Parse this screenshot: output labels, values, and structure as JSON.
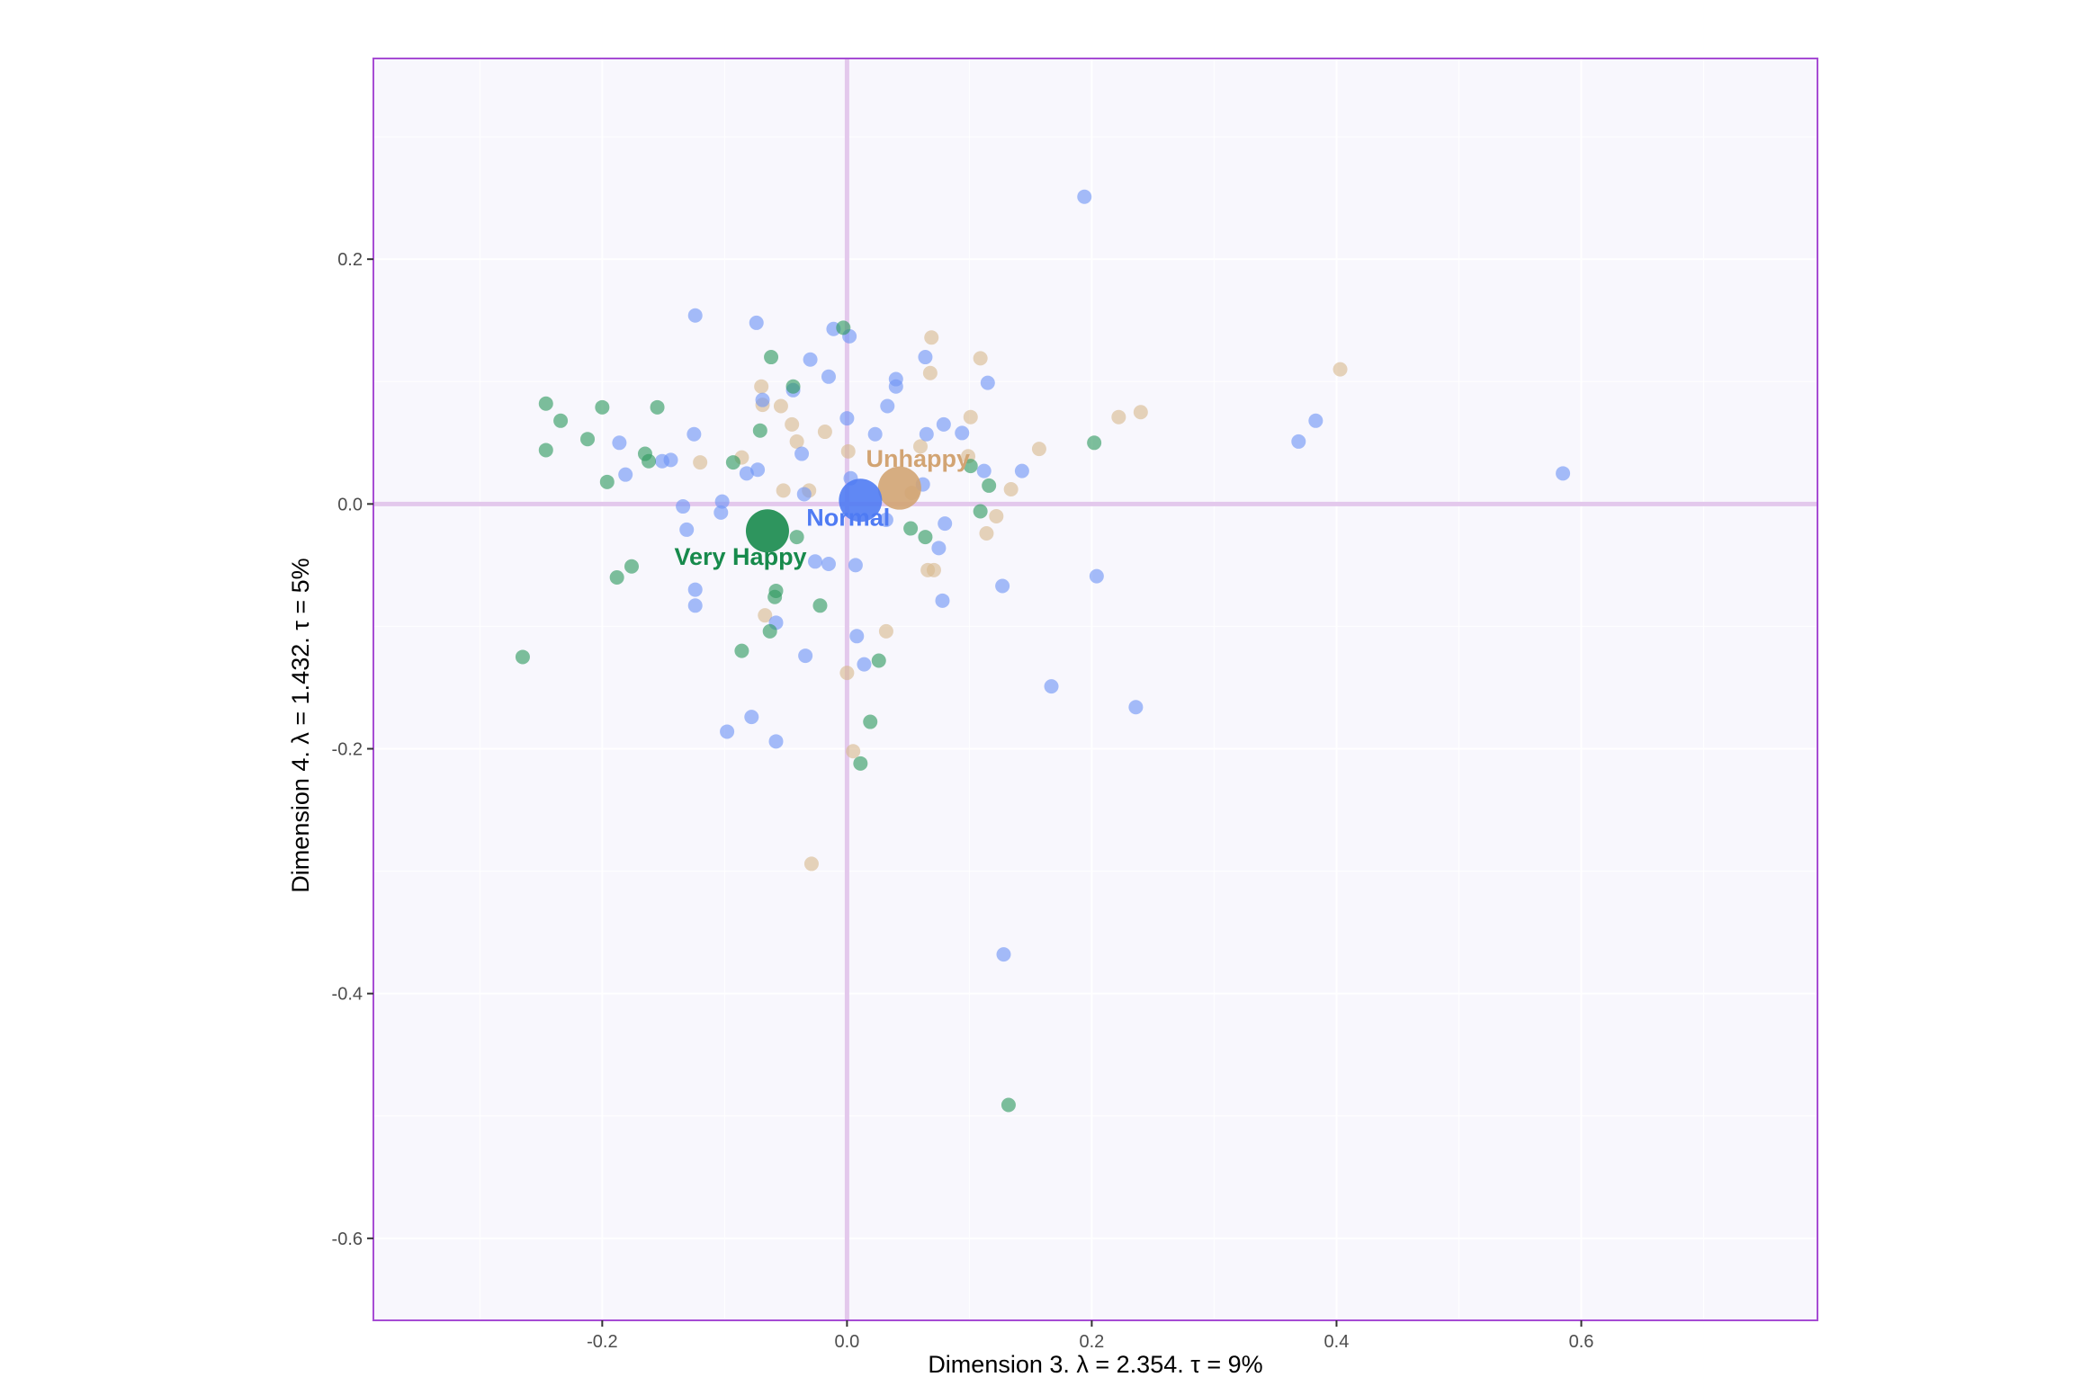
{
  "chart_data": {
    "type": "scatter",
    "title": "",
    "xlabel": "Dimension 3.   λ = 2.354.  τ = 9%",
    "ylabel": "Dimension 4.   λ = 1.432.  τ = 5%",
    "xlim": [
      -0.387,
      0.793
    ],
    "ylim": [
      -0.667,
      0.364
    ],
    "x_ticks": [
      -0.2,
      0.0,
      0.2,
      0.4,
      0.6
    ],
    "x_tick_labels": [
      "-0.2",
      "0.0",
      "0.2",
      "0.4",
      "0.6"
    ],
    "y_ticks": [
      -0.6,
      -0.4,
      -0.2,
      0.0,
      0.2
    ],
    "y_tick_labels": [
      "-0.6",
      "-0.4",
      "-0.2",
      "0.0",
      "0.2"
    ],
    "grid": true,
    "reference_lines": {
      "x": 0.0,
      "y": 0.0,
      "color": "#e3c8ec"
    },
    "colors": {
      "panel_background": "#f8f7fd",
      "panel_border": "#a64cd4",
      "grid": "#ffffff"
    },
    "series": [
      {
        "color": "#d9b990",
        "points": [
          [
            0.069,
            0.136
          ],
          [
            0.068,
            0.107
          ],
          [
            0.109,
            0.119
          ],
          [
            0.403,
            0.11
          ],
          [
            0.24,
            0.075
          ],
          [
            0.222,
            0.071
          ],
          [
            0.157,
            0.045
          ],
          [
            0.101,
            0.071
          ],
          [
            -0.07,
            0.096
          ],
          [
            -0.069,
            0.081
          ],
          [
            -0.054,
            0.08
          ],
          [
            -0.045,
            0.065
          ],
          [
            -0.041,
            0.051
          ],
          [
            -0.018,
            0.059
          ],
          [
            0.001,
            0.043
          ],
          [
            0.06,
            0.047
          ],
          [
            -0.12,
            0.034
          ],
          [
            -0.086,
            0.038
          ],
          [
            -0.052,
            0.011
          ],
          [
            -0.031,
            0.011
          ],
          [
            0.053,
            0.009
          ],
          [
            0.099,
            0.039
          ],
          [
            0.134,
            0.012
          ],
          [
            0.122,
            -0.01
          ],
          [
            0.114,
            -0.024
          ],
          [
            0.066,
            -0.054
          ],
          [
            0.071,
            -0.054
          ],
          [
            -0.067,
            -0.091
          ],
          [
            0.032,
            -0.104
          ],
          [
            0.0,
            -0.138
          ],
          [
            0.005,
            -0.202
          ],
          [
            -0.029,
            -0.294
          ]
        ]
      },
      {
        "color": "#6f94f5",
        "points": [
          [
            0.194,
            0.251
          ],
          [
            -0.124,
            0.154
          ],
          [
            -0.074,
            0.148
          ],
          [
            -0.011,
            0.143
          ],
          [
            0.002,
            0.137
          ],
          [
            -0.03,
            0.118
          ],
          [
            -0.015,
            0.104
          ],
          [
            0.064,
            0.12
          ],
          [
            0.04,
            0.102
          ],
          [
            0.04,
            0.096
          ],
          [
            0.115,
            0.099
          ],
          [
            0.033,
            0.08
          ],
          [
            -0.044,
            0.093
          ],
          [
            -0.069,
            0.085
          ],
          [
            0.0,
            0.07
          ],
          [
            0.079,
            0.065
          ],
          [
            0.094,
            0.058
          ],
          [
            0.065,
            0.057
          ],
          [
            0.023,
            0.057
          ],
          [
            -0.125,
            0.057
          ],
          [
            -0.186,
            0.05
          ],
          [
            -0.181,
            0.024
          ],
          [
            -0.151,
            0.035
          ],
          [
            -0.144,
            0.036
          ],
          [
            -0.082,
            0.025
          ],
          [
            -0.073,
            0.028
          ],
          [
            -0.037,
            0.041
          ],
          [
            0.112,
            0.027
          ],
          [
            0.143,
            0.027
          ],
          [
            0.062,
            0.016
          ],
          [
            0.003,
            0.021
          ],
          [
            -0.035,
            0.008
          ],
          [
            -0.134,
            -0.002
          ],
          [
            -0.102,
            0.002
          ],
          [
            -0.103,
            -0.007
          ],
          [
            -0.131,
            -0.021
          ],
          [
            0.032,
            -0.013
          ],
          [
            0.08,
            -0.016
          ],
          [
            0.075,
            -0.036
          ],
          [
            -0.015,
            -0.049
          ],
          [
            0.007,
            -0.05
          ],
          [
            -0.026,
            -0.047
          ],
          [
            0.127,
            -0.067
          ],
          [
            0.204,
            -0.059
          ],
          [
            0.078,
            -0.079
          ],
          [
            -0.124,
            -0.07
          ],
          [
            -0.124,
            -0.083
          ],
          [
            -0.058,
            -0.097
          ],
          [
            0.008,
            -0.108
          ],
          [
            -0.034,
            -0.124
          ],
          [
            0.014,
            -0.131
          ],
          [
            0.167,
            -0.149
          ],
          [
            0.236,
            -0.166
          ],
          [
            -0.078,
            -0.174
          ],
          [
            -0.098,
            -0.186
          ],
          [
            -0.058,
            -0.194
          ],
          [
            0.128,
            -0.368
          ],
          [
            0.369,
            0.051
          ],
          [
            0.383,
            0.068
          ],
          [
            0.585,
            0.025
          ]
        ]
      },
      {
        "color": "#2e9a5f",
        "points": [
          [
            -0.003,
            0.144
          ],
          [
            -0.062,
            0.12
          ],
          [
            -0.044,
            0.096
          ],
          [
            -0.246,
            0.082
          ],
          [
            -0.2,
            0.079
          ],
          [
            -0.155,
            0.079
          ],
          [
            -0.234,
            0.068
          ],
          [
            -0.071,
            0.06
          ],
          [
            -0.212,
            0.053
          ],
          [
            -0.246,
            0.044
          ],
          [
            -0.165,
            0.041
          ],
          [
            -0.162,
            0.035
          ],
          [
            -0.093,
            0.034
          ],
          [
            -0.196,
            0.018
          ],
          [
            0.101,
            0.031
          ],
          [
            0.202,
            0.05
          ],
          [
            0.116,
            0.015
          ],
          [
            0.109,
            -0.006
          ],
          [
            0.052,
            -0.02
          ],
          [
            0.064,
            -0.027
          ],
          [
            -0.041,
            -0.027
          ],
          [
            -0.176,
            -0.051
          ],
          [
            -0.188,
            -0.06
          ],
          [
            -0.058,
            -0.071
          ],
          [
            -0.059,
            -0.076
          ],
          [
            -0.022,
            -0.083
          ],
          [
            -0.063,
            -0.104
          ],
          [
            -0.086,
            -0.12
          ],
          [
            0.026,
            -0.128
          ],
          [
            -0.265,
            -0.125
          ],
          [
            0.019,
            -0.178
          ],
          [
            0.011,
            -0.212
          ],
          [
            0.132,
            -0.491
          ]
        ]
      }
    ],
    "centroids": [
      {
        "label": "Unhappy",
        "x": 0.043,
        "y": 0.013,
        "color": "#d2a473",
        "label_dx": 0.015,
        "label_dy": 0.024
      },
      {
        "label": "Normal",
        "x": 0.011,
        "y": 0.003,
        "color": "#4f7bf3",
        "label_dx": -0.01,
        "label_dy": -0.014
      },
      {
        "label": "Very Happy",
        "x": -0.065,
        "y": -0.022,
        "color": "#178a4c",
        "label_dx": -0.022,
        "label_dy": -0.021
      }
    ]
  }
}
